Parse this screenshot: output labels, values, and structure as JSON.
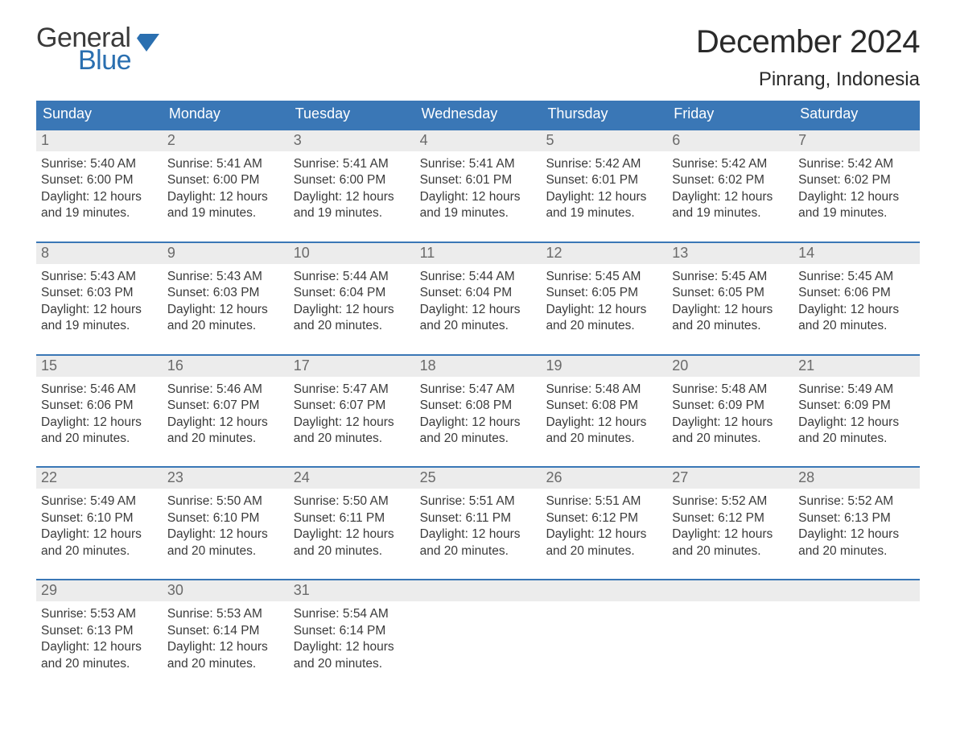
{
  "brand": {
    "word1": "General",
    "word2": "Blue",
    "flag_color": "#2a6fb0",
    "text_dark": "#3a3a3a"
  },
  "title": "December 2024",
  "location": "Pinrang, Indonesia",
  "colors": {
    "header_bg": "#3a77b6",
    "header_text": "#ffffff",
    "row_border": "#3a77b6",
    "daynum_bg": "#ececec",
    "daynum_text": "#6a6a6a",
    "body_text": "#3a3a3a",
    "page_bg": "#ffffff"
  },
  "weekdays": [
    "Sunday",
    "Monday",
    "Tuesday",
    "Wednesday",
    "Thursday",
    "Friday",
    "Saturday"
  ],
  "days": [
    {
      "n": 1,
      "sunrise": "5:40 AM",
      "sunset": "6:00 PM",
      "daylight": "12 hours and 19 minutes."
    },
    {
      "n": 2,
      "sunrise": "5:41 AM",
      "sunset": "6:00 PM",
      "daylight": "12 hours and 19 minutes."
    },
    {
      "n": 3,
      "sunrise": "5:41 AM",
      "sunset": "6:00 PM",
      "daylight": "12 hours and 19 minutes."
    },
    {
      "n": 4,
      "sunrise": "5:41 AM",
      "sunset": "6:01 PM",
      "daylight": "12 hours and 19 minutes."
    },
    {
      "n": 5,
      "sunrise": "5:42 AM",
      "sunset": "6:01 PM",
      "daylight": "12 hours and 19 minutes."
    },
    {
      "n": 6,
      "sunrise": "5:42 AM",
      "sunset": "6:02 PM",
      "daylight": "12 hours and 19 minutes."
    },
    {
      "n": 7,
      "sunrise": "5:42 AM",
      "sunset": "6:02 PM",
      "daylight": "12 hours and 19 minutes."
    },
    {
      "n": 8,
      "sunrise": "5:43 AM",
      "sunset": "6:03 PM",
      "daylight": "12 hours and 19 minutes."
    },
    {
      "n": 9,
      "sunrise": "5:43 AM",
      "sunset": "6:03 PM",
      "daylight": "12 hours and 20 minutes."
    },
    {
      "n": 10,
      "sunrise": "5:44 AM",
      "sunset": "6:04 PM",
      "daylight": "12 hours and 20 minutes."
    },
    {
      "n": 11,
      "sunrise": "5:44 AM",
      "sunset": "6:04 PM",
      "daylight": "12 hours and 20 minutes."
    },
    {
      "n": 12,
      "sunrise": "5:45 AM",
      "sunset": "6:05 PM",
      "daylight": "12 hours and 20 minutes."
    },
    {
      "n": 13,
      "sunrise": "5:45 AM",
      "sunset": "6:05 PM",
      "daylight": "12 hours and 20 minutes."
    },
    {
      "n": 14,
      "sunrise": "5:45 AM",
      "sunset": "6:06 PM",
      "daylight": "12 hours and 20 minutes."
    },
    {
      "n": 15,
      "sunrise": "5:46 AM",
      "sunset": "6:06 PM",
      "daylight": "12 hours and 20 minutes."
    },
    {
      "n": 16,
      "sunrise": "5:46 AM",
      "sunset": "6:07 PM",
      "daylight": "12 hours and 20 minutes."
    },
    {
      "n": 17,
      "sunrise": "5:47 AM",
      "sunset": "6:07 PM",
      "daylight": "12 hours and 20 minutes."
    },
    {
      "n": 18,
      "sunrise": "5:47 AM",
      "sunset": "6:08 PM",
      "daylight": "12 hours and 20 minutes."
    },
    {
      "n": 19,
      "sunrise": "5:48 AM",
      "sunset": "6:08 PM",
      "daylight": "12 hours and 20 minutes."
    },
    {
      "n": 20,
      "sunrise": "5:48 AM",
      "sunset": "6:09 PM",
      "daylight": "12 hours and 20 minutes."
    },
    {
      "n": 21,
      "sunrise": "5:49 AM",
      "sunset": "6:09 PM",
      "daylight": "12 hours and 20 minutes."
    },
    {
      "n": 22,
      "sunrise": "5:49 AM",
      "sunset": "6:10 PM",
      "daylight": "12 hours and 20 minutes."
    },
    {
      "n": 23,
      "sunrise": "5:50 AM",
      "sunset": "6:10 PM",
      "daylight": "12 hours and 20 minutes."
    },
    {
      "n": 24,
      "sunrise": "5:50 AM",
      "sunset": "6:11 PM",
      "daylight": "12 hours and 20 minutes."
    },
    {
      "n": 25,
      "sunrise": "5:51 AM",
      "sunset": "6:11 PM",
      "daylight": "12 hours and 20 minutes."
    },
    {
      "n": 26,
      "sunrise": "5:51 AM",
      "sunset": "6:12 PM",
      "daylight": "12 hours and 20 minutes."
    },
    {
      "n": 27,
      "sunrise": "5:52 AM",
      "sunset": "6:12 PM",
      "daylight": "12 hours and 20 minutes."
    },
    {
      "n": 28,
      "sunrise": "5:52 AM",
      "sunset": "6:13 PM",
      "daylight": "12 hours and 20 minutes."
    },
    {
      "n": 29,
      "sunrise": "5:53 AM",
      "sunset": "6:13 PM",
      "daylight": "12 hours and 20 minutes."
    },
    {
      "n": 30,
      "sunrise": "5:53 AM",
      "sunset": "6:14 PM",
      "daylight": "12 hours and 20 minutes."
    },
    {
      "n": 31,
      "sunrise": "5:54 AM",
      "sunset": "6:14 PM",
      "daylight": "12 hours and 20 minutes."
    }
  ],
  "labels": {
    "sunrise": "Sunrise:",
    "sunset": "Sunset:",
    "daylight": "Daylight:"
  },
  "layout": {
    "start_weekday_index": 0,
    "columns": 7,
    "font_family": "Arial, Helvetica, sans-serif"
  }
}
